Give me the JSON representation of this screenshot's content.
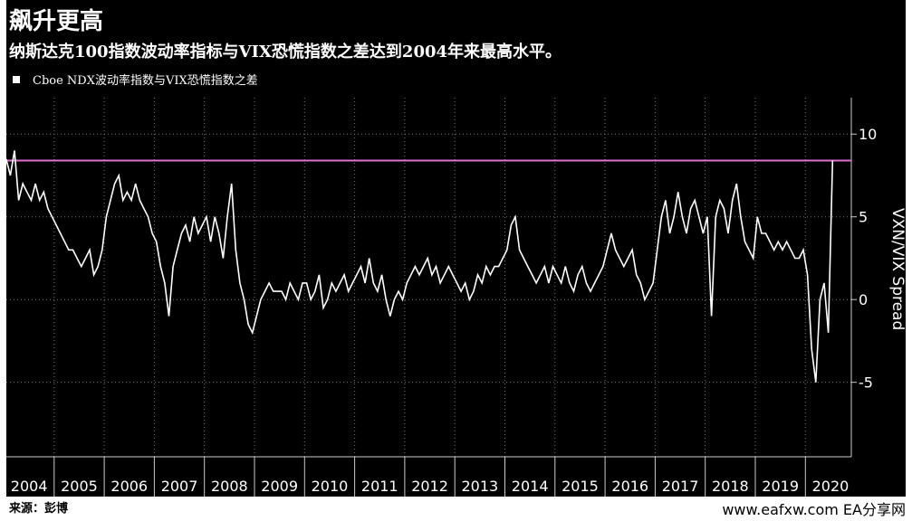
{
  "chart_data": {
    "type": "line",
    "title": "飙升更高",
    "subtitle": "纳斯达克100指数波动率指标与VIX恐慌指数之差达到2004年来最高水平。",
    "ylabel": "VXN/VIX Spread",
    "source": "来源：彭博",
    "watermark": "www.eafxw.com  EA分享网",
    "categories": [
      "2004",
      "2005",
      "2006",
      "2007",
      "2008",
      "2009",
      "2010",
      "2011",
      "2012",
      "2013",
      "2014",
      "2015",
      "2016",
      "2017",
      "2018",
      "2019",
      "2020"
    ],
    "series": [
      {
        "name": "Cboe NDX波动率指数与VIX恐慌指数之差",
        "color": "#ffffff",
        "values": [
          [
            8.5,
            7.5,
            9,
            6,
            7,
            6.5,
            6,
            7,
            6,
            6.5,
            5.5,
            5
          ],
          [
            4.5,
            4,
            3.5,
            3,
            3,
            2.5,
            2,
            2.5,
            3,
            1.5,
            2,
            3
          ],
          [
            5,
            6,
            7,
            7.5,
            6,
            6.5,
            6,
            7,
            6,
            5.5,
            5,
            4
          ],
          [
            3.5,
            2,
            1,
            -1,
            2,
            3,
            4,
            4.5,
            3.5,
            5,
            4,
            4.5
          ],
          [
            5,
            3.5,
            5,
            4,
            2.5,
            5,
            7,
            3,
            1,
            0,
            -1.5,
            -2
          ],
          [
            -1,
            0,
            0.5,
            1,
            0.5,
            0.5,
            0.5,
            0,
            1,
            0.5,
            0,
            1
          ],
          [
            1,
            0,
            0.5,
            1.5,
            -0.5,
            0,
            1,
            0.5,
            1,
            1.5,
            0.5,
            1
          ],
          [
            1.5,
            2,
            1,
            2.5,
            1,
            0.5,
            1.5,
            0,
            -1,
            0,
            0.5,
            0
          ],
          [
            1,
            1.5,
            2,
            1.5,
            2,
            2.5,
            1.5,
            2,
            1,
            1.5,
            2,
            1.5
          ],
          [
            1,
            0.5,
            1,
            0,
            0.5,
            1.5,
            1,
            2,
            1.5,
            2,
            2,
            2.5
          ],
          [
            3,
            4.5,
            5,
            3,
            2.5,
            2,
            1.5,
            1,
            1.5,
            2,
            1,
            2
          ],
          [
            1.5,
            1,
            2,
            1,
            0.5,
            1.5,
            2,
            1,
            0.5,
            1,
            1.5,
            2
          ],
          [
            3,
            4,
            3,
            2.5,
            2,
            2.5,
            3,
            1.5,
            1,
            0,
            0.5,
            1
          ],
          [
            3,
            5,
            6,
            4,
            5,
            6.5,
            5,
            4,
            5.5,
            6,
            5,
            4
          ],
          [
            5,
            -1,
            5,
            6,
            5.5,
            4,
            6,
            7,
            5,
            3.5,
            3,
            2.5
          ],
          [
            5,
            4,
            4,
            3.5,
            3,
            3.5,
            3,
            3.5,
            3,
            2.5,
            2.5,
            3
          ],
          [
            1.5,
            -3,
            -5,
            0,
            1,
            -2,
            8.4
          ]
        ]
      }
    ],
    "reference_line": {
      "value": 8.4,
      "color": "#e070d0"
    },
    "ylim": [
      -9.5,
      12.2
    ],
    "yticks": [
      -5,
      0,
      5,
      10
    ],
    "grid": true
  }
}
